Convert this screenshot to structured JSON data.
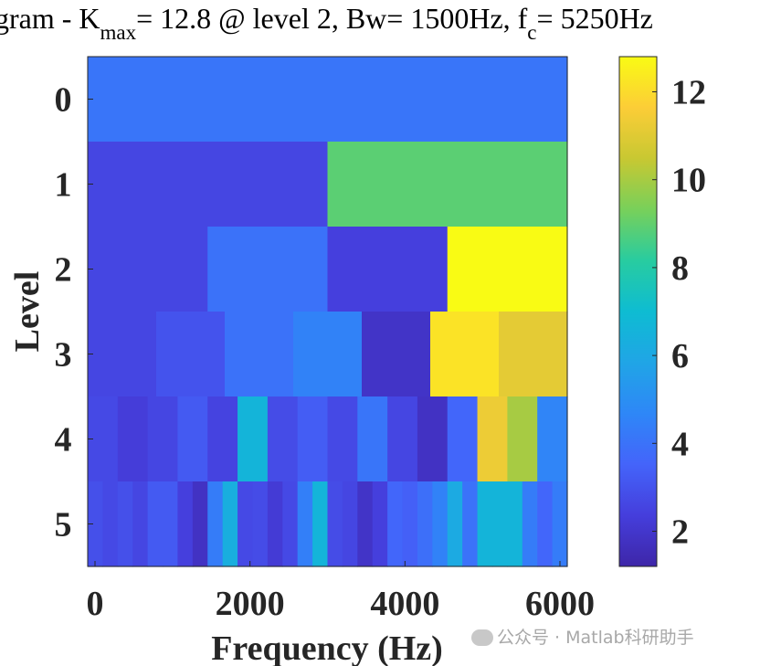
{
  "title": {
    "part1": "gram - K",
    "sub1": "max",
    "part2": "= 12.8 @ level 2, Bw= 1500Hz, f",
    "sub2": "c",
    "part3": "= 5250Hz"
  },
  "watermark": "公众号 · Matlab科研助手",
  "chart_data": {
    "type": "heatmap",
    "xlabel": "Frequency (Hz)",
    "ylabel": "Level",
    "xlim": [
      0,
      6000
    ],
    "x_ticks": [
      0,
      2000,
      4000,
      6000
    ],
    "y_ticks": [
      0,
      1,
      2,
      3,
      4,
      5
    ],
    "colorbar": {
      "limits": [
        1.2,
        12.8
      ],
      "ticks": [
        2,
        4,
        6,
        8,
        10,
        12
      ],
      "colormap": "parula"
    },
    "rows": [
      {
        "level": 0,
        "values": [
          4.1
        ]
      },
      {
        "level": 1,
        "values": [
          2.6,
          8.9
        ]
      },
      {
        "level": 2,
        "values": [
          2.6,
          4.0,
          2.4,
          12.8
        ]
      },
      {
        "level": 3,
        "values": [
          2.6,
          3.0,
          4.0,
          4.5,
          1.9,
          12.2,
          11.1
        ]
      },
      {
        "level": 4,
        "values": [
          2.7,
          2.3,
          2.6,
          3.2,
          2.5,
          6.6,
          2.8,
          3.3,
          2.7,
          4.1,
          2.6,
          1.8,
          3.6,
          11.3,
          10.0,
          4.6
        ]
      },
      {
        "level": 5,
        "values": [
          2.9,
          2.7,
          2.9,
          2.6,
          3.2,
          3.2,
          2.4,
          1.8,
          4.3,
          6.3,
          2.7,
          2.8,
          2.2,
          2.7,
          4.4,
          6.6,
          2.8,
          2.6,
          1.9,
          2.4,
          3.6,
          3.4,
          3.9,
          4.5,
          6.1,
          4.0,
          6.6,
          6.6,
          6.6,
          4.3,
          3.6,
          4.3
        ]
      }
    ]
  }
}
